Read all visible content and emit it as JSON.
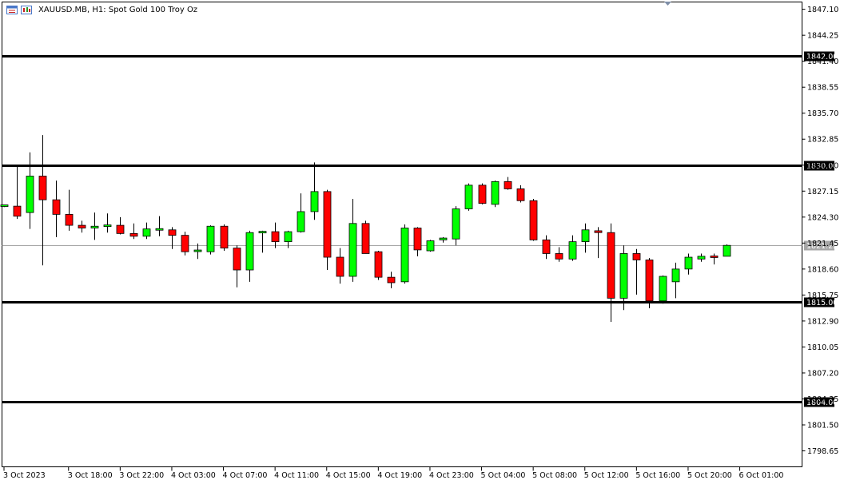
{
  "header": {
    "symbol": "XAUUSD.MB, H1:",
    "description": "Spot Gold 100 Troy Oz"
  },
  "colors": {
    "bull": "#00ff00",
    "bear": "#ff0000",
    "outline": "#000000",
    "hline": "#000000",
    "price_line": "#a6a6a6"
  },
  "chart_data": {
    "type": "candlestick",
    "ylim": [
      1796.9,
      1847.9
    ],
    "y_ticks": [
      "1847.10",
      "1844.25",
      "1841.40",
      "1838.55",
      "1835.70",
      "1832.85",
      "1830.00",
      "1827.15",
      "1824.30",
      "1821.45",
      "1818.60",
      "1815.75",
      "1812.90",
      "1810.05",
      "1807.20",
      "1804.35",
      "1801.50",
      "1798.65"
    ],
    "x_ticks": [
      {
        "label": "3 Oct 2023",
        "index": 0
      },
      {
        "label": "3 Oct 18:00",
        "index": 5
      },
      {
        "label": "3 Oct 22:00",
        "index": 9
      },
      {
        "label": "4 Oct 03:00",
        "index": 13
      },
      {
        "label": "4 Oct 07:00",
        "index": 17
      },
      {
        "label": "4 Oct 11:00",
        "index": 21
      },
      {
        "label": "4 Oct 15:00",
        "index": 25
      },
      {
        "label": "4 Oct 19:00",
        "index": 29
      },
      {
        "label": "4 Oct 23:00",
        "index": 33
      },
      {
        "label": "5 Oct 04:00",
        "index": 37
      },
      {
        "label": "5 Oct 08:00",
        "index": 41
      },
      {
        "label": "5 Oct 12:00",
        "index": 45
      },
      {
        "label": "5 Oct 16:00",
        "index": 49
      },
      {
        "label": "5 Oct 20:00",
        "index": 53
      },
      {
        "label": "6 Oct 01:00",
        "index": 57
      }
    ],
    "horizontal_lines": [
      {
        "price": 1842.0,
        "label": "1842.00"
      },
      {
        "price": 1830.0,
        "label": "1830.00"
      },
      {
        "price": 1815.0,
        "label": "1815.00"
      },
      {
        "price": 1804.0,
        "label": "1804.00"
      }
    ],
    "current_price": {
      "price": 1821.22,
      "label": "1821.22"
    },
    "candles": [
      {
        "o": 1825.5,
        "h": 1825.6,
        "l": 1825.4,
        "c": 1825.6
      },
      {
        "o": 1825.5,
        "h": 1830.0,
        "l": 1824.1,
        "c": 1824.4
      },
      {
        "o": 1824.8,
        "h": 1831.4,
        "l": 1823.0,
        "c": 1828.8
      },
      {
        "o": 1828.8,
        "h": 1833.3,
        "l": 1819.0,
        "c": 1826.2
      },
      {
        "o": 1826.2,
        "h": 1828.3,
        "l": 1822.1,
        "c": 1824.6
      },
      {
        "o": 1824.6,
        "h": 1827.3,
        "l": 1822.8,
        "c": 1823.4
      },
      {
        "o": 1823.4,
        "h": 1823.9,
        "l": 1822.6,
        "c": 1823.1
      },
      {
        "o": 1823.1,
        "h": 1824.8,
        "l": 1821.8,
        "c": 1823.3
      },
      {
        "o": 1823.3,
        "h": 1824.7,
        "l": 1822.6,
        "c": 1823.4
      },
      {
        "o": 1823.4,
        "h": 1824.3,
        "l": 1822.4,
        "c": 1822.5
      },
      {
        "o": 1822.5,
        "h": 1823.6,
        "l": 1821.9,
        "c": 1822.2
      },
      {
        "o": 1822.2,
        "h": 1823.7,
        "l": 1821.9,
        "c": 1823.0
      },
      {
        "o": 1822.9,
        "h": 1824.4,
        "l": 1822.2,
        "c": 1823.0
      },
      {
        "o": 1822.9,
        "h": 1823.2,
        "l": 1820.8,
        "c": 1822.3
      },
      {
        "o": 1822.3,
        "h": 1822.7,
        "l": 1820.1,
        "c": 1820.5
      },
      {
        "o": 1820.6,
        "h": 1821.4,
        "l": 1819.7,
        "c": 1820.6
      },
      {
        "o": 1820.5,
        "h": 1823.4,
        "l": 1820.2,
        "c": 1823.3
      },
      {
        "o": 1823.3,
        "h": 1823.5,
        "l": 1820.6,
        "c": 1820.9
      },
      {
        "o": 1820.9,
        "h": 1821.2,
        "l": 1816.6,
        "c": 1818.5
      },
      {
        "o": 1818.5,
        "h": 1822.8,
        "l": 1817.2,
        "c": 1822.6
      },
      {
        "o": 1822.6,
        "h": 1822.8,
        "l": 1820.4,
        "c": 1822.7
      },
      {
        "o": 1822.7,
        "h": 1823.7,
        "l": 1820.9,
        "c": 1821.6
      },
      {
        "o": 1821.6,
        "h": 1822.8,
        "l": 1820.9,
        "c": 1822.7
      },
      {
        "o": 1822.7,
        "h": 1826.9,
        "l": 1822.6,
        "c": 1824.9
      },
      {
        "o": 1824.9,
        "h": 1830.3,
        "l": 1824.0,
        "c": 1827.1
      },
      {
        "o": 1827.1,
        "h": 1827.3,
        "l": 1818.5,
        "c": 1819.9
      },
      {
        "o": 1819.9,
        "h": 1820.9,
        "l": 1817.0,
        "c": 1817.8
      },
      {
        "o": 1817.8,
        "h": 1826.3,
        "l": 1817.2,
        "c": 1823.6
      },
      {
        "o": 1823.6,
        "h": 1823.9,
        "l": 1820.3,
        "c": 1820.3
      },
      {
        "o": 1820.5,
        "h": 1820.6,
        "l": 1817.4,
        "c": 1817.7
      },
      {
        "o": 1817.7,
        "h": 1818.3,
        "l": 1816.5,
        "c": 1817.1
      },
      {
        "o": 1817.2,
        "h": 1823.5,
        "l": 1817.0,
        "c": 1823.1
      },
      {
        "o": 1823.1,
        "h": 1823.2,
        "l": 1820.0,
        "c": 1820.7
      },
      {
        "o": 1820.6,
        "h": 1821.8,
        "l": 1820.5,
        "c": 1821.7
      },
      {
        "o": 1821.8,
        "h": 1822.1,
        "l": 1821.5,
        "c": 1822.0
      },
      {
        "o": 1821.9,
        "h": 1825.5,
        "l": 1821.2,
        "c": 1825.2
      },
      {
        "o": 1825.2,
        "h": 1828.0,
        "l": 1825.0,
        "c": 1827.8
      },
      {
        "o": 1827.8,
        "h": 1828.0,
        "l": 1825.7,
        "c": 1825.8
      },
      {
        "o": 1825.7,
        "h": 1828.3,
        "l": 1825.4,
        "c": 1828.2
      },
      {
        "o": 1828.2,
        "h": 1828.7,
        "l": 1827.3,
        "c": 1827.4
      },
      {
        "o": 1827.4,
        "h": 1827.8,
        "l": 1825.9,
        "c": 1826.1
      },
      {
        "o": 1826.1,
        "h": 1826.3,
        "l": 1821.7,
        "c": 1821.8
      },
      {
        "o": 1821.8,
        "h": 1822.3,
        "l": 1819.7,
        "c": 1820.3
      },
      {
        "o": 1820.3,
        "h": 1821.0,
        "l": 1819.4,
        "c": 1819.7
      },
      {
        "o": 1819.7,
        "h": 1822.3,
        "l": 1819.5,
        "c": 1821.6
      },
      {
        "o": 1821.6,
        "h": 1823.6,
        "l": 1820.4,
        "c": 1822.9
      },
      {
        "o": 1822.8,
        "h": 1823.2,
        "l": 1819.8,
        "c": 1822.6
      },
      {
        "o": 1822.6,
        "h": 1823.6,
        "l": 1812.8,
        "c": 1815.4
      },
      {
        "o": 1815.4,
        "h": 1821.2,
        "l": 1814.1,
        "c": 1820.3
      },
      {
        "o": 1820.3,
        "h": 1820.8,
        "l": 1815.8,
        "c": 1819.6
      },
      {
        "o": 1819.6,
        "h": 1819.8,
        "l": 1814.3,
        "c": 1815.1
      },
      {
        "o": 1815.1,
        "h": 1817.9,
        "l": 1814.8,
        "c": 1817.8
      },
      {
        "o": 1817.2,
        "h": 1819.3,
        "l": 1815.4,
        "c": 1818.6
      },
      {
        "o": 1818.6,
        "h": 1820.3,
        "l": 1818.0,
        "c": 1819.9
      },
      {
        "o": 1819.7,
        "h": 1820.3,
        "l": 1819.4,
        "c": 1820.0
      },
      {
        "o": 1820.0,
        "h": 1820.3,
        "l": 1819.1,
        "c": 1819.9
      },
      {
        "o": 1820.0,
        "h": 1821.3,
        "l": 1820.0,
        "c": 1821.2
      }
    ]
  }
}
